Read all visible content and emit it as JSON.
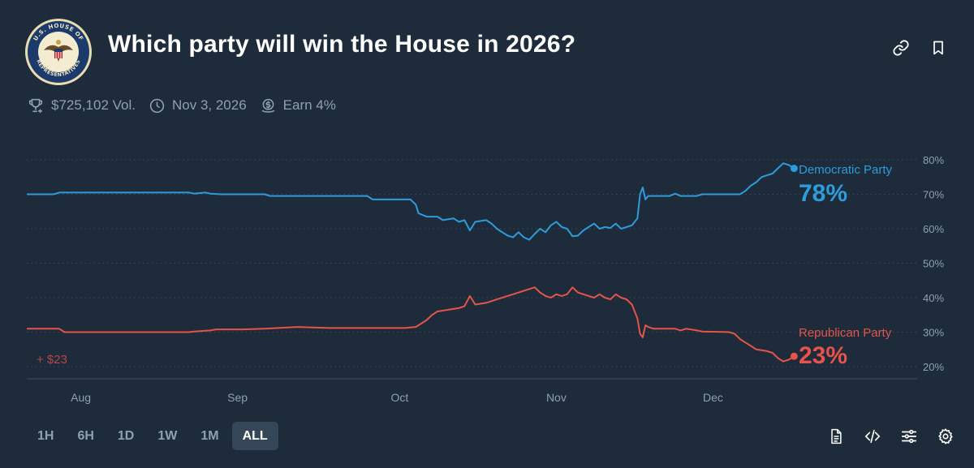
{
  "header": {
    "title": "Which party will win the House in 2026?",
    "seal_text": "U.S. HOUSE OF REPRESENTATIVES"
  },
  "meta": {
    "volume": "$725,102 Vol.",
    "end_date": "Nov 3, 2026",
    "earn": "Earn 4%"
  },
  "time_range": {
    "options": [
      "1H",
      "6H",
      "1D",
      "1W",
      "1M",
      "ALL"
    ],
    "selected": "ALL"
  },
  "colors": {
    "background": "#1d2b3a",
    "democratic": "#2d9cdb",
    "republican": "#e5534b",
    "grid": "#3a4a5b",
    "muted_text": "#8fa0b1"
  },
  "chart_data": {
    "type": "line",
    "xlabel": "",
    "ylabel": "",
    "ylim": [
      20,
      80
    ],
    "y_ticks": [
      "20%",
      "30%",
      "40%",
      "50%",
      "60%",
      "70%",
      "80%"
    ],
    "x_ticks": [
      "Aug",
      "Sep",
      "Oct",
      "Nov",
      "Dec"
    ],
    "annotation": "+ $23",
    "x_domain": [
      0,
      140
    ],
    "x_tick_values": [
      10,
      39,
      69,
      98,
      127
    ],
    "series": [
      {
        "name": "Democratic Party",
        "final_label": "78%",
        "points": [
          [
            0,
            70
          ],
          [
            5,
            70
          ],
          [
            6,
            70.5
          ],
          [
            30,
            70.5
          ],
          [
            31,
            70.2
          ],
          [
            33,
            70.5
          ],
          [
            34,
            70.2
          ],
          [
            36,
            70
          ],
          [
            44,
            70
          ],
          [
            45,
            69.5
          ],
          [
            63,
            69.5
          ],
          [
            64,
            68.5
          ],
          [
            71,
            68.5
          ],
          [
            72,
            67
          ],
          [
            72.5,
            64.5
          ],
          [
            74,
            63.5
          ],
          [
            76,
            63.5
          ],
          [
            77,
            62.5
          ],
          [
            79,
            63
          ],
          [
            80,
            62
          ],
          [
            81,
            62.5
          ],
          [
            82,
            59.5
          ],
          [
            83,
            62
          ],
          [
            85,
            62.5
          ],
          [
            86,
            61.5
          ],
          [
            87,
            60
          ],
          [
            88,
            59
          ],
          [
            89,
            58
          ],
          [
            90,
            57.5
          ],
          [
            91,
            59
          ],
          [
            92,
            57.5
          ],
          [
            93,
            56.8
          ],
          [
            94,
            58.5
          ],
          [
            95,
            60
          ],
          [
            96,
            59
          ],
          [
            97,
            61
          ],
          [
            98,
            62
          ],
          [
            99,
            60.5
          ],
          [
            100,
            60
          ],
          [
            101,
            57.8
          ],
          [
            102,
            58
          ],
          [
            103,
            59.5
          ],
          [
            104,
            60.5
          ],
          [
            105,
            61.5
          ],
          [
            106,
            60
          ],
          [
            107,
            60.5
          ],
          [
            108,
            60.2
          ],
          [
            109,
            61.5
          ],
          [
            110,
            60
          ],
          [
            111,
            60.5
          ],
          [
            112,
            61
          ],
          [
            113,
            63
          ],
          [
            113.5,
            70
          ],
          [
            114,
            72
          ],
          [
            114.5,
            68.5
          ],
          [
            115,
            69.5
          ],
          [
            119,
            69.5
          ],
          [
            120,
            70.2
          ],
          [
            121,
            69.5
          ],
          [
            124,
            69.5
          ],
          [
            125,
            70
          ],
          [
            132,
            70
          ],
          [
            133,
            71
          ],
          [
            134,
            72.5
          ],
          [
            135,
            73.5
          ],
          [
            136,
            75
          ],
          [
            137,
            75.5
          ],
          [
            138,
            76
          ],
          [
            139,
            77.5
          ],
          [
            140,
            79
          ],
          [
            141,
            78.5
          ],
          [
            142,
            77.5
          ]
        ]
      },
      {
        "name": "Republican Party",
        "final_label": "23%",
        "points": [
          [
            0,
            31
          ],
          [
            6,
            31
          ],
          [
            7,
            30
          ],
          [
            30,
            30
          ],
          [
            31,
            30.2
          ],
          [
            34,
            30.5
          ],
          [
            35,
            30.8
          ],
          [
            40,
            30.8
          ],
          [
            44,
            31
          ],
          [
            50,
            31.5
          ],
          [
            56,
            31.2
          ],
          [
            64,
            31.2
          ],
          [
            70,
            31.2
          ],
          [
            72,
            31.5
          ],
          [
            73,
            32.5
          ],
          [
            74,
            33.5
          ],
          [
            75,
            35
          ],
          [
            76,
            36
          ],
          [
            78,
            36.5
          ],
          [
            80,
            37
          ],
          [
            81,
            37.5
          ],
          [
            82,
            40.5
          ],
          [
            83,
            38
          ],
          [
            85,
            38.5
          ],
          [
            87,
            39.5
          ],
          [
            88,
            40
          ],
          [
            90,
            41
          ],
          [
            92,
            42
          ],
          [
            93,
            42.5
          ],
          [
            94,
            43
          ],
          [
            95,
            41.5
          ],
          [
            96,
            40.5
          ],
          [
            97,
            40
          ],
          [
            98,
            41
          ],
          [
            99,
            40.5
          ],
          [
            100,
            41
          ],
          [
            101,
            43
          ],
          [
            102,
            41.5
          ],
          [
            103,
            41
          ],
          [
            104,
            40.5
          ],
          [
            105,
            40
          ],
          [
            106,
            41
          ],
          [
            107,
            40
          ],
          [
            108,
            39.5
          ],
          [
            109,
            41
          ],
          [
            110,
            40
          ],
          [
            111,
            39.5
          ],
          [
            112,
            38
          ],
          [
            113,
            34
          ],
          [
            113.5,
            29.5
          ],
          [
            114,
            28.5
          ],
          [
            114.5,
            32
          ],
          [
            115,
            31.5
          ],
          [
            116,
            31
          ],
          [
            120,
            31
          ],
          [
            121,
            30.5
          ],
          [
            122,
            31
          ],
          [
            124,
            30.5
          ],
          [
            125,
            30.2
          ],
          [
            130,
            30
          ],
          [
            131,
            29.5
          ],
          [
            132,
            28
          ],
          [
            133,
            27
          ],
          [
            134,
            26
          ],
          [
            135,
            25
          ],
          [
            137,
            24.5
          ],
          [
            138,
            24
          ],
          [
            139,
            22.5
          ],
          [
            140,
            21.5
          ],
          [
            141,
            22
          ],
          [
            142,
            23
          ]
        ]
      }
    ]
  }
}
